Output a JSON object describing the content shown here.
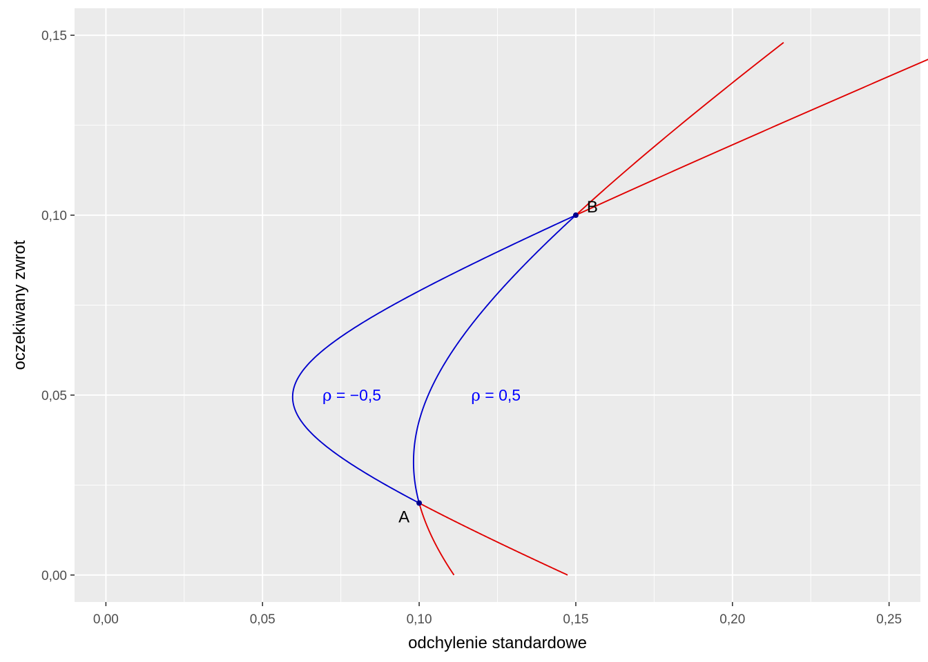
{
  "chart_data": {
    "type": "line",
    "title": "",
    "xlabel": "odchylenie standardowe",
    "ylabel": "oczekiwany zwrot",
    "xlim": [
      -0.01,
      0.26
    ],
    "ylim": [
      -0.0075,
      0.1575
    ],
    "x_ticks": [
      0.0,
      0.05,
      0.1,
      0.15,
      0.2,
      0.25
    ],
    "x_tick_labels": [
      "0,00",
      "0,05",
      "0,10",
      "0,15",
      "0,20",
      "0,25"
    ],
    "y_ticks": [
      0.0,
      0.05,
      0.1,
      0.15
    ],
    "y_tick_labels": [
      "0,00",
      "0,05",
      "0,10",
      "0,15"
    ],
    "grid": true,
    "assets": {
      "A": {
        "label": "A",
        "sd": 0.1,
        "mean": 0.02
      },
      "B": {
        "label": "B",
        "sd": 0.15,
        "mean": 0.1
      }
    },
    "series": [
      {
        "rho": -0.5,
        "w_min": -0.25,
        "w_max": 1.6,
        "segment": "inside",
        "color": "#0000cc"
      },
      {
        "rho": -0.5,
        "w_min": -0.25,
        "w_max": 1.6,
        "segment": "outside",
        "color": "#e00000"
      },
      {
        "rho": 0.5,
        "w_min": -0.25,
        "w_max": 1.6,
        "segment": "inside",
        "color": "#0000cc"
      },
      {
        "rho": 0.5,
        "w_min": -0.25,
        "w_max": 1.6,
        "segment": "outside",
        "color": "#e00000"
      }
    ],
    "annotations": [
      {
        "text_rho": "ρ",
        "text_eq": " = ",
        "text_val": "−0,5",
        "sd": 0.0785,
        "mean": 0.05,
        "color": "#0000ff"
      },
      {
        "text_rho": "ρ",
        "text_eq": " = ",
        "text_val": "0,5",
        "sd": 0.1245,
        "mean": 0.05,
        "color": "#0000ff"
      }
    ],
    "colors": {
      "panel": "#ebebeb",
      "grid": "#ffffff",
      "inside_curve": "#0000cc",
      "outside_curve": "#e00000",
      "point": "#00008b"
    }
  }
}
